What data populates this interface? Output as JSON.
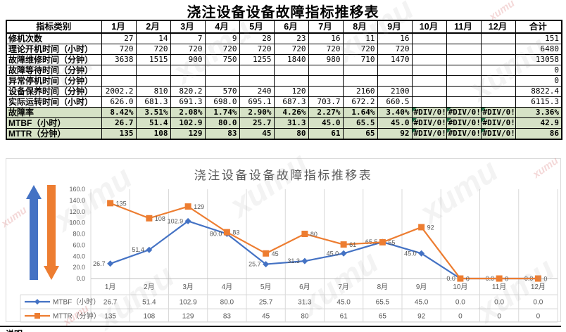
{
  "title": "浇注设备设备故障指标推移表",
  "watermark": {
    "text": "xumu"
  },
  "footer": {
    "note_label": "说明"
  },
  "table": {
    "columns": [
      "指标类别",
      "1月",
      "2月",
      "3月",
      "4月",
      "5月",
      "6月",
      "7月",
      "8月",
      "9月",
      "10月",
      "11月",
      "12月",
      "合计"
    ],
    "rows": [
      {
        "label": "修机次数",
        "highlight": false,
        "values": [
          "27",
          "14",
          "7",
          "9",
          "28",
          "23",
          "16",
          "11",
          "16",
          "",
          "",
          "",
          "151"
        ]
      },
      {
        "label": "理论开机时间（小时）",
        "highlight": false,
        "values": [
          "720",
          "720",
          "720",
          "720",
          "720",
          "720",
          "720",
          "720",
          "720",
          "",
          "",
          "",
          "6480"
        ]
      },
      {
        "label": "故障维修时间（分钟）",
        "highlight": false,
        "values": [
          "3638",
          "1515",
          "900",
          "750",
          "1255",
          "1840",
          "980",
          "710",
          "1470",
          "",
          "",
          "",
          "13058"
        ]
      },
      {
        "label": "故障等待时间（分钟）",
        "highlight": false,
        "values": [
          "",
          "",
          "",
          "",
          "",
          "",
          "",
          "",
          "",
          "",
          "",
          "",
          "0"
        ]
      },
      {
        "label": "异常停机时间（分钟）",
        "highlight": false,
        "values": [
          "",
          "",
          "",
          "",
          "",
          "",
          "",
          "",
          "",
          "",
          "",
          "",
          "0"
        ]
      },
      {
        "label": "设备保养时间（分钟）",
        "highlight": false,
        "values": [
          "2002.2",
          "810",
          "820.2",
          "570",
          "240",
          "120",
          "",
          "2160",
          "2100",
          "",
          "",
          "",
          "8822.4"
        ]
      },
      {
        "label": "实际运转时间（小时）",
        "highlight": false,
        "values": [
          "626.0",
          "681.3",
          "691.3",
          "698.0",
          "695.1",
          "687.3",
          "703.7",
          "672.2",
          "660.5",
          "",
          "",
          "",
          "6115.3"
        ]
      },
      {
        "label": "故障率",
        "highlight": true,
        "values": [
          "8.42%",
          "3.51%",
          "2.08%",
          "1.74%",
          "2.90%",
          "4.26%",
          "2.27%",
          "1.64%",
          "3.40%",
          "#DIV/0!",
          "#DIV/0!",
          "#DIV/0!",
          "3.36%"
        ]
      },
      {
        "label": "MTBF（小时）",
        "highlight": true,
        "values": [
          "26.7",
          "51.4",
          "102.9",
          "80.0",
          "25.7",
          "31.3",
          "45.0",
          "65.5",
          "45.0",
          "#DIV/0!",
          "#DIV/0!",
          "#DIV/0!",
          "42.9"
        ]
      },
      {
        "label": "MTTR（分钟）",
        "highlight": true,
        "values": [
          "135",
          "108",
          "129",
          "83",
          "45",
          "80",
          "61",
          "65",
          "92",
          "#DIV/0!",
          "#DIV/0!",
          "#DIV/0!",
          "86"
        ]
      }
    ]
  },
  "chart_data": {
    "type": "line",
    "title": "浇注设备设备故障指标推移表",
    "categories": [
      "1月",
      "2月",
      "3月",
      "4月",
      "5月",
      "6月",
      "7月",
      "8月",
      "9月",
      "10月",
      "11月",
      "12月"
    ],
    "series": [
      {
        "name": "MTBF（小时）",
        "color": "#4472C4",
        "marker": "diamond",
        "values": [
          26.7,
          51.4,
          102.9,
          80.0,
          25.7,
          31.3,
          45.0,
          65.5,
          45.0,
          0.0,
          0.0,
          0.0
        ],
        "labels": [
          "26.7",
          "51.4",
          "102.9",
          "80.0",
          "25.7",
          "31.3",
          "45.0",
          "65.5",
          "45.0",
          "0.0",
          "0.0",
          "0.0"
        ]
      },
      {
        "name": "MTTR（分钟）",
        "color": "#ED7D31",
        "marker": "square",
        "values": [
          135,
          108,
          129,
          83,
          45,
          80,
          61,
          65,
          92,
          0,
          0,
          0
        ],
        "labels": [
          "135",
          "108",
          "129",
          "83",
          "45",
          "80",
          "61",
          "65",
          "92",
          "0",
          "0",
          "0"
        ]
      }
    ],
    "ylim": [
      0,
      160
    ],
    "ytick_step": 20,
    "ytick_labels": [
      "0.0",
      "20.0",
      "40.0",
      "60.0",
      "80.0",
      "100.0",
      "120.0",
      "140.0",
      "160.0"
    ],
    "grid": "vertical",
    "legend_position": "data-table-left",
    "arrows": {
      "up_color": "#4472C4",
      "down_color": "#ED7D31"
    }
  }
}
